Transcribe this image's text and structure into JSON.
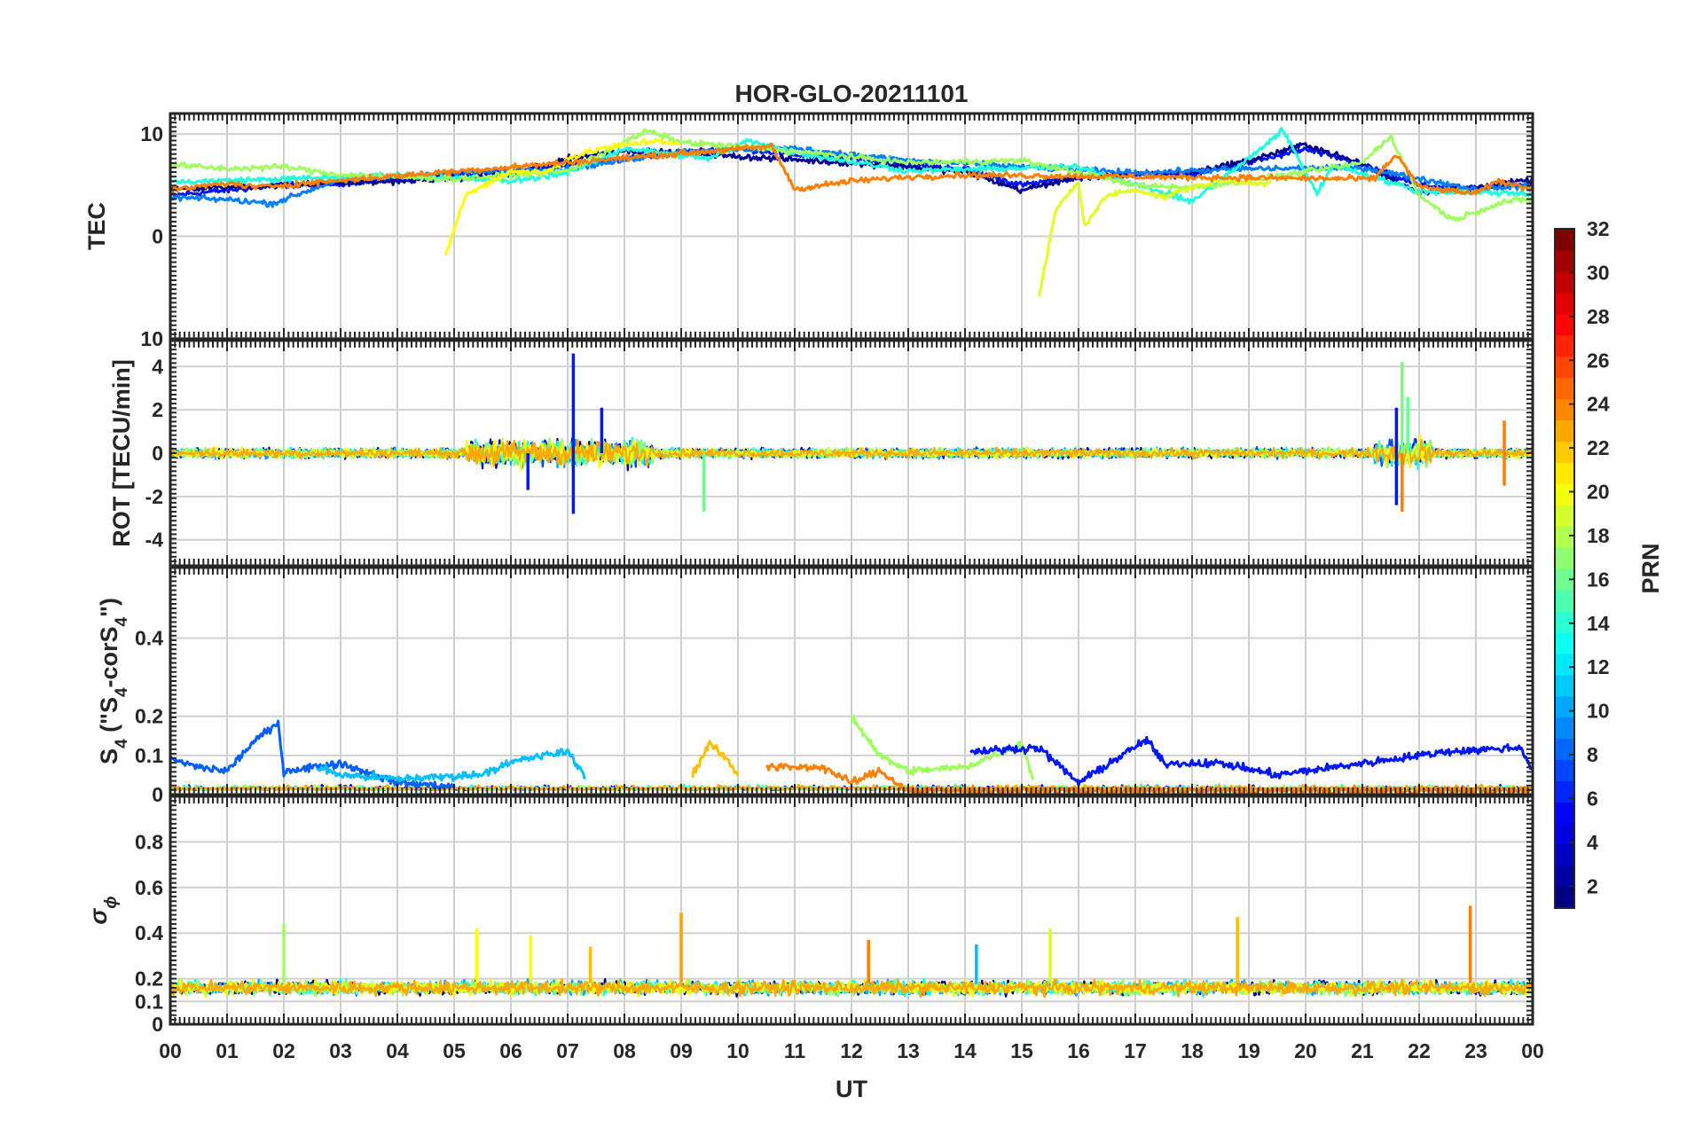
{
  "chart_data": {
    "type": "line",
    "title": "HOR-GLO-20211101",
    "xlabel": "UT",
    "x_ticks": [
      "00",
      "01",
      "02",
      "03",
      "04",
      "05",
      "06",
      "07",
      "08",
      "09",
      "10",
      "11",
      "12",
      "13",
      "14",
      "15",
      "16",
      "17",
      "18",
      "19",
      "20",
      "21",
      "22",
      "23",
      "00"
    ],
    "xlim_hours": [
      0,
      24
    ],
    "grid": true,
    "colorbar": {
      "label": "PRN",
      "colormap": "jet",
      "range": [
        1,
        32
      ],
      "ticks": [
        "2",
        "4",
        "6",
        "8",
        "10",
        "12",
        "14",
        "16",
        "18",
        "20",
        "22",
        "24",
        "26",
        "28",
        "30",
        "32"
      ]
    },
    "panels": [
      {
        "id": "tec",
        "ylabel": "TEC",
        "ylim": [
          -10,
          12
        ],
        "y_ticks": [
          "10",
          "0",
          "10"
        ],
        "series_summary": [
          {
            "prn": 3,
            "color": "#0016ff",
            "points": [
              [
                0,
                4.0
              ],
              [
                1,
                4.5
              ],
              [
                2,
                5.0
              ],
              [
                3,
                5.2
              ],
              [
                4,
                5.6
              ],
              [
                5,
                6.0
              ],
              [
                6,
                6.3
              ],
              [
                7,
                7.0
              ],
              [
                8,
                7.6
              ],
              [
                9,
                8.2
              ],
              [
                10,
                8.6
              ],
              [
                11,
                8.0
              ],
              [
                12,
                7.6
              ],
              [
                13,
                7.0
              ],
              [
                14,
                6.6
              ],
              [
                15,
                5.0
              ],
              [
                16,
                5.8
              ],
              [
                17,
                6.0
              ],
              [
                18,
                6.0
              ],
              [
                19,
                7.2
              ],
              [
                20,
                8.5
              ],
              [
                21,
                7.0
              ],
              [
                22,
                5.0
              ],
              [
                23,
                4.6
              ],
              [
                24,
                5.2
              ]
            ]
          },
          {
            "prn": 1,
            "color": "#00008f",
            "points": [
              [
                0,
                4.6
              ],
              [
                2,
                5.0
              ],
              [
                4,
                5.4
              ],
              [
                6,
                6.0
              ],
              [
                7,
                7.6
              ],
              [
                8,
                8.4
              ],
              [
                9,
                8.1
              ],
              [
                11,
                7.5
              ],
              [
                13,
                6.8
              ],
              [
                14,
                6.3
              ],
              [
                15,
                4.5
              ],
              [
                16,
                5.8
              ],
              [
                18,
                6.3
              ],
              [
                19,
                7.4
              ],
              [
                20,
                9.0
              ],
              [
                21,
                7.0
              ],
              [
                22,
                4.3
              ],
              [
                23,
                4.8
              ],
              [
                24,
                5.5
              ]
            ]
          },
          {
            "prn": 10,
            "color": "#007fff",
            "points": [
              [
                0,
                3.8
              ],
              [
                1,
                3.6
              ],
              [
                1.8,
                3.2
              ],
              [
                3,
                5.6
              ],
              [
                5,
                6.2
              ],
              [
                7,
                6.6
              ],
              [
                9,
                8.3
              ],
              [
                11,
                8.6
              ],
              [
                13,
                7.4
              ],
              [
                15,
                6.8
              ],
              [
                17,
                6.2
              ],
              [
                19,
                6.6
              ],
              [
                21,
                6.7
              ],
              [
                23,
                4.6
              ],
              [
                24,
                5.0
              ]
            ]
          },
          {
            "prn": 13,
            "color": "#1fffdf",
            "points": [
              [
                0,
                5.3
              ],
              [
                2,
                5.6
              ],
              [
                4,
                6.0
              ],
              [
                6,
                5.4
              ],
              [
                7,
                6.2
              ],
              [
                8,
                8.6
              ],
              [
                9.5,
                7.6
              ],
              [
                10.2,
                9.4
              ],
              [
                11,
                8.2
              ],
              [
                13,
                6.4
              ],
              [
                16,
                6.8
              ],
              [
                18,
                3.4
              ],
              [
                19,
                7.6
              ],
              [
                19.6,
                10.4
              ],
              [
                20.2,
                4.2
              ],
              [
                20.5,
                7.0
              ],
              [
                22,
                4.4
              ],
              [
                24,
                4.2
              ]
            ]
          },
          {
            "prn": 17,
            "color": "#9fff5f",
            "points": [
              [
                0,
                7.0
              ],
              [
                1,
                6.6
              ],
              [
                2,
                6.8
              ],
              [
                3,
                6.0
              ],
              [
                5,
                5.6
              ],
              [
                7,
                6.4
              ],
              [
                8,
                9.2
              ],
              [
                8.4,
                10.3
              ],
              [
                9,
                9.2
              ],
              [
                11,
                8.3
              ],
              [
                13,
                7.2
              ],
              [
                15,
                7.4
              ],
              [
                17,
                5.0
              ],
              [
                18,
                4.8
              ],
              [
                19,
                5.4
              ],
              [
                21,
                7.2
              ],
              [
                21.5,
                9.8
              ],
              [
                22,
                4.0
              ],
              [
                22.6,
                1.6
              ],
              [
                23.5,
                3.4
              ],
              [
                24,
                3.6
              ]
            ]
          },
          {
            "prn": 20,
            "color": "#ffff00",
            "points": [
              [
                4.85,
                -1.8
              ],
              [
                5.2,
                4.0
              ],
              [
                6,
                6.4
              ],
              [
                6.6,
                6.2
              ],
              [
                7,
                7.6
              ],
              [
                7.6,
                8.6
              ],
              [
                8.6,
                9.4
              ],
              [
                9.0,
                8.9
              ]
            ]
          },
          {
            "prn": 19,
            "color": "#dfff1f",
            "points": [
              [
                15.3,
                -6.0
              ],
              [
                15.6,
                2.6
              ],
              [
                16,
                5.4
              ],
              [
                16.1,
                1.0
              ],
              [
                16.5,
                4.0
              ],
              [
                17,
                4.6
              ],
              [
                17.5,
                3.8
              ],
              [
                18,
                4.8
              ],
              [
                18.5,
                5.4
              ],
              [
                19.4,
                5.2
              ]
            ]
          },
          {
            "prn": 23,
            "color": "#ff7f00",
            "points": [
              [
                0,
                4.5
              ],
              [
                1,
                5.2
              ],
              [
                1.5,
                4.8
              ],
              [
                10.6,
                8.8
              ],
              [
                11.0,
                4.6
              ],
              [
                12,
                5.4
              ],
              [
                13,
                5.8
              ],
              [
                14,
                6.0
              ],
              [
                21.2,
                5.6
              ],
              [
                21.6,
                8.0
              ],
              [
                22,
                4.8
              ],
              [
                23,
                4.2
              ],
              [
                23.4,
                5.4
              ],
              [
                24,
                4.6
              ]
            ]
          }
        ]
      },
      {
        "id": "rot",
        "ylabel": "ROT [TECU/min]",
        "ylim": [
          -5.2,
          5.2
        ],
        "y_ticks": [
          "4",
          "2",
          "0",
          "-2",
          "-4"
        ],
        "series_summary": [
          {
            "prn": 3,
            "color": "#0016ff",
            "note_points": [
              [
                7.1,
                4.6
              ],
              [
                7.1,
                -2.8
              ],
              [
                7.6,
                2.1
              ],
              [
                21.6,
                2.1
              ],
              [
                21.6,
                -2.4
              ],
              [
                6.3,
                -1.7
              ]
            ]
          },
          {
            "prn": 16,
            "color": "#6fff8f",
            "note_points": [
              [
                9.4,
                -2.7
              ],
              [
                21.7,
                4.2
              ],
              [
                21.8,
                2.6
              ]
            ]
          },
          {
            "prn": 23,
            "color": "#ff7f00",
            "note_points": [
              [
                21.7,
                -2.7
              ],
              [
                23.5,
                1.5
              ],
              [
                23.5,
                -1.5
              ]
            ]
          }
        ]
      },
      {
        "id": "s4",
        "ylabel_parts": [
          "S",
          "4",
          " (\"S",
          "4",
          "-corS",
          "4",
          "\")"
        ],
        "ylim": [
          0,
          0.58
        ],
        "y_ticks": [
          "0.4",
          "0.2",
          "0.1",
          "0"
        ],
        "series_summary": [
          {
            "prn": 9,
            "color": "#005fff",
            "points": [
              [
                0,
                0.09
              ],
              [
                0.5,
                0.07
              ],
              [
                1,
                0.06
              ],
              [
                1.5,
                0.14
              ],
              [
                1.9,
                0.18
              ],
              [
                2,
                0.06
              ],
              [
                3,
                0.08
              ],
              [
                4,
                0.03
              ],
              [
                5,
                0.02
              ]
            ]
          },
          {
            "prn": 12,
            "color": "#00bfff",
            "points": [
              [
                2.6,
                0.07
              ],
              [
                3,
                0.05
              ],
              [
                4,
                0.04
              ],
              [
                5.4,
                0.05
              ],
              [
                6.2,
                0.09
              ],
              [
                7,
                0.11
              ],
              [
                7.3,
                0.05
              ]
            ]
          },
          {
            "prn": 22,
            "color": "#ffbf00",
            "points": [
              [
                9.2,
                0.05
              ],
              [
                9.5,
                0.13
              ],
              [
                9.8,
                0.09
              ],
              [
                10,
                0.05
              ]
            ]
          },
          {
            "prn": 17,
            "color": "#9fff5f",
            "points": [
              [
                12.0,
                0.2
              ],
              [
                12.3,
                0.14
              ],
              [
                12.5,
                0.1
              ],
              [
                13,
                0.06
              ],
              [
                14,
                0.07
              ],
              [
                15,
                0.13
              ],
              [
                15.2,
                0.04
              ]
            ]
          },
          {
            "prn": 3,
            "color": "#0016ff",
            "points": [
              [
                14.1,
                0.11
              ],
              [
                15.3,
                0.12
              ],
              [
                16,
                0.03
              ],
              [
                17.2,
                0.14
              ],
              [
                17.5,
                0.08
              ],
              [
                18.5,
                0.08
              ],
              [
                19.5,
                0.05
              ],
              [
                22.5,
                0.11
              ],
              [
                23.8,
                0.12
              ],
              [
                24,
                0.06
              ]
            ]
          },
          {
            "prn": 23,
            "color": "#ff7f00",
            "points": [
              [
                10.5,
                0.07
              ],
              [
                11.5,
                0.07
              ],
              [
                12,
                0.03
              ],
              [
                12.5,
                0.06
              ],
              [
                13,
                0.01
              ],
              [
                24,
                0.01
              ]
            ]
          }
        ]
      },
      {
        "id": "sigma_phi",
        "ylabel": "σ",
        "ylabel_sub": "ϕ",
        "ylim": [
          0,
          1.0
        ],
        "y_ticks": [
          "0.8",
          "0.6",
          "0.4",
          "0.2",
          "0.1",
          "0"
        ],
        "spikes": [
          {
            "x": 2.0,
            "y": 0.44,
            "color": "#9fff5f"
          },
          {
            "x": 5.4,
            "y": 0.42,
            "color": "#ffff00"
          },
          {
            "x": 6.35,
            "y": 0.39,
            "color": "#ffff00"
          },
          {
            "x": 7.4,
            "y": 0.34,
            "color": "#ffbf00"
          },
          {
            "x": 9.0,
            "y": 0.49,
            "color": "#ff9f00"
          },
          {
            "x": 12.3,
            "y": 0.37,
            "color": "#ff7f00"
          },
          {
            "x": 14.2,
            "y": 0.35,
            "color": "#00bfff"
          },
          {
            "x": 15.5,
            "y": 0.42,
            "color": "#dfff1f"
          },
          {
            "x": 18.8,
            "y": 0.47,
            "color": "#ffbf00"
          },
          {
            "x": 22.9,
            "y": 0.52,
            "color": "#ff7f00"
          }
        ],
        "baseline_range": [
          0.12,
          0.22
        ]
      }
    ]
  }
}
